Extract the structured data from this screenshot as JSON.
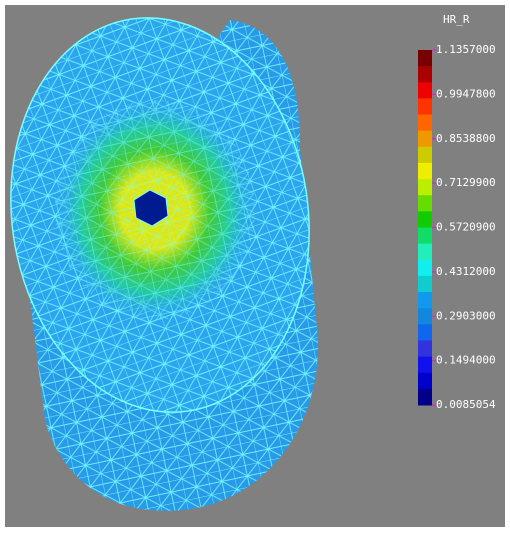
{
  "legend": {
    "title": "HR_R",
    "labels": [
      "1.1357000",
      "0.9947800",
      "0.8538800",
      "0.7129900",
      "0.5720900",
      "0.4312000",
      "0.2903000",
      "0.1494000",
      "0.0085054"
    ]
  }
}
